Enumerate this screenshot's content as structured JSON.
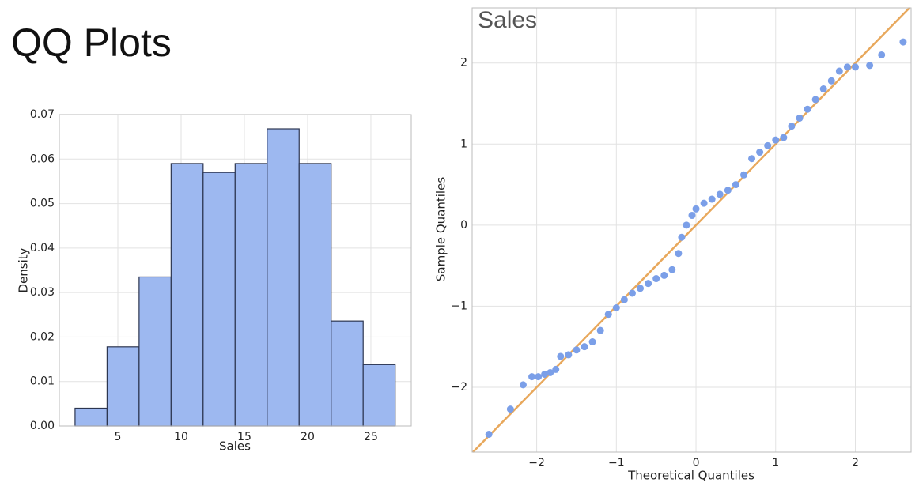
{
  "title": "QQ Plots",
  "chart_data": [
    {
      "type": "histogram",
      "xlabel": "Sales",
      "ylabel": "Density",
      "bins": [
        1.62,
        4.15,
        6.68,
        9.21,
        11.74,
        14.27,
        16.8,
        19.33,
        21.86,
        24.39,
        26.92
      ],
      "values": [
        0.004,
        0.0178,
        0.0335,
        0.059,
        0.057,
        0.059,
        0.0668,
        0.059,
        0.0236,
        0.0138
      ],
      "color": "#9db8f0",
      "edgecolor": "#2c3550",
      "xlim": [
        0.375,
        28.19
      ],
      "ylim": [
        0,
        0.07
      ],
      "xticks": [
        5,
        10,
        15,
        20,
        25
      ],
      "yticks": [
        {
          "value": 0,
          "label": "0.00"
        },
        {
          "value": 0.01,
          "label": "0.01"
        },
        {
          "value": 0.02,
          "label": "0.02"
        },
        {
          "value": 0.03,
          "label": "0.03"
        },
        {
          "value": 0.04,
          "label": "0.04"
        },
        {
          "value": 0.05,
          "label": "0.05"
        },
        {
          "value": 0.06,
          "label": "0.06"
        },
        {
          "value": 0.07,
          "label": "0.07"
        }
      ],
      "grid": true
    },
    {
      "type": "scatter",
      "title": "Sales",
      "xlabel": "Theoretical Quantiles",
      "ylabel": "Sample Quantiles",
      "x": [
        -2.6,
        -2.33,
        -2.17,
        -2.06,
        -1.98,
        -1.9,
        -1.83,
        -1.76,
        -1.7,
        -1.6,
        -1.5,
        -1.4,
        -1.3,
        -1.2,
        -1.1,
        -1.0,
        -0.9,
        -0.8,
        -0.7,
        -0.6,
        -0.5,
        -0.4,
        -0.3,
        -0.22,
        -0.18,
        -0.12,
        -0.05,
        0.0,
        0.1,
        0.2,
        0.3,
        0.4,
        0.5,
        0.6,
        0.7,
        0.8,
        0.9,
        1.0,
        1.1,
        1.2,
        1.3,
        1.4,
        1.5,
        1.6,
        1.7,
        1.8,
        1.9,
        2.0,
        2.18,
        2.33,
        2.6
      ],
      "values": [
        -2.58,
        -2.27,
        -1.97,
        -1.87,
        -1.87,
        -1.84,
        -1.82,
        -1.78,
        -1.62,
        -1.6,
        -1.54,
        -1.5,
        -1.44,
        -1.3,
        -1.1,
        -1.02,
        -0.92,
        -0.84,
        -0.78,
        -0.72,
        -0.66,
        -0.62,
        -0.55,
        -0.35,
        -0.15,
        0.0,
        0.12,
        0.2,
        0.27,
        0.32,
        0.38,
        0.43,
        0.5,
        0.62,
        0.82,
        0.9,
        0.98,
        1.05,
        1.08,
        1.22,
        1.32,
        1.43,
        1.55,
        1.68,
        1.78,
        1.9,
        1.95,
        1.95,
        1.97,
        2.1,
        2.26
      ],
      "color": "#7b9fe8",
      "reference_line": "45",
      "line_color": "#e8a85c",
      "xlim": [
        -2.81,
        2.7
      ],
      "ylim": [
        -2.8,
        2.68
      ],
      "xticks": [
        {
          "value": -2,
          "label": "−2"
        },
        {
          "value": -1,
          "label": "−1"
        },
        0,
        1,
        2
      ],
      "yticks": [
        {
          "value": -2,
          "label": "−2"
        },
        {
          "value": -1,
          "label": "−1"
        },
        0,
        1,
        2
      ],
      "grid": true
    }
  ]
}
